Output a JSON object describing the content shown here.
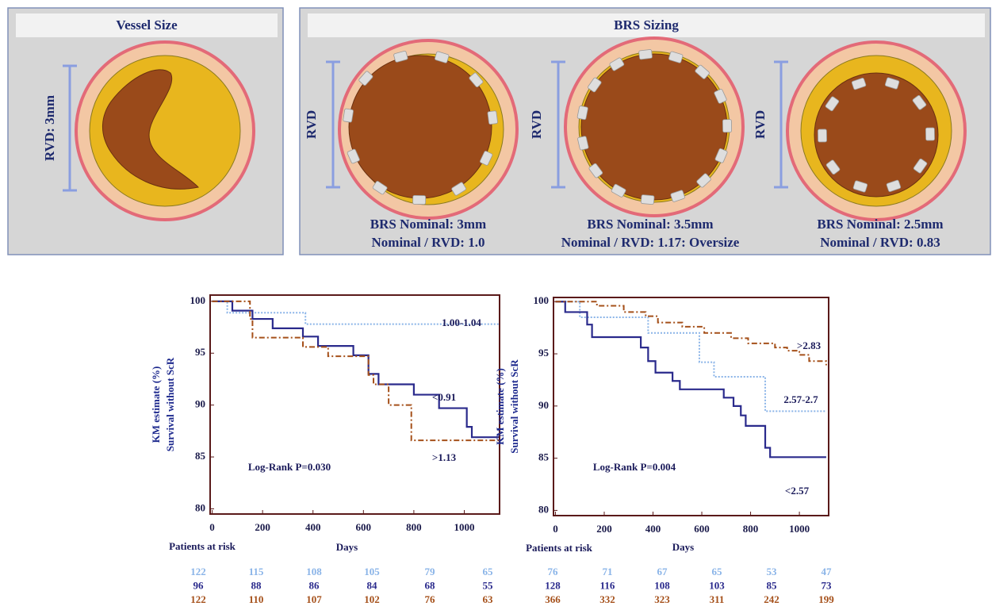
{
  "diagram": {
    "vessel_panel": {
      "title": "Vessel Size",
      "rvd_label": "RVD: 3mm"
    },
    "brs_panel": {
      "title": "BRS Sizing",
      "cases": [
        {
          "rvd_label": "RVD",
          "nominal": "BRS Nominal: 3mm",
          "ratio": "Nominal / RVD: 1.0"
        },
        {
          "rvd_label": "RVD",
          "nominal": "BRS Nominal: 3.5mm",
          "ratio": "Nominal / RVD: 1.17: Oversize"
        },
        {
          "rvd_label": "RVD",
          "nominal": "BRS Nominal: 2.5mm",
          "ratio": "Nominal / RVD: 0.83"
        }
      ]
    }
  },
  "chart_data": [
    {
      "type": "line",
      "ylabel": [
        "KM estimate (%)",
        "Survival without ScR"
      ],
      "xlabel": "Days",
      "annotation": "Log-Rank P=0.030",
      "risk_label": "Patients at risk",
      "xlim": [
        -8,
        1140
      ],
      "ylim": [
        79.5,
        100.6
      ],
      "xticks": [
        0,
        200,
        400,
        600,
        800,
        1000
      ],
      "yticks": [
        80,
        85,
        90,
        95,
        100
      ],
      "series": [
        {
          "name": "1.00-1.04",
          "color": "#8ab4e8",
          "line_style": "dotted",
          "x": [
            0,
            60,
            370,
            1140
          ],
          "values": [
            100,
            98.9,
            97.8,
            97.8
          ],
          "at_risk": [
            122,
            115,
            108,
            105,
            79,
            65
          ]
        },
        {
          "name": "<0.91",
          "color": "#2a2a8c",
          "line_style": "solid",
          "x": [
            0,
            80,
            160,
            240,
            360,
            420,
            560,
            620,
            660,
            800,
            900,
            1010,
            1030,
            1140
          ],
          "values": [
            100,
            99.1,
            98.3,
            97.4,
            96.6,
            95.7,
            94.8,
            93.0,
            92.0,
            91.0,
            89.7,
            87.9,
            86.9,
            86.9
          ],
          "at_risk": [
            96,
            88,
            86,
            84,
            68,
            55
          ]
        },
        {
          "name": ">1.13",
          "color": "#a5501a",
          "line_style": "dashdot",
          "x": [
            0,
            150,
            160,
            360,
            460,
            620,
            640,
            700,
            790,
            1140
          ],
          "values": [
            100,
            98.3,
            96.5,
            95.6,
            94.7,
            92.9,
            92.0,
            90.0,
            86.6,
            86.6
          ],
          "at_risk": [
            122,
            110,
            107,
            102,
            76,
            63
          ]
        }
      ]
    },
    {
      "type": "line",
      "ylabel": [
        "KM estimate (%)",
        "Survival without ScR"
      ],
      "xlabel": "Days",
      "annotation": "Log-Rank P=0.004",
      "risk_label": "Patients at risk",
      "xlim": [
        -8,
        1120
      ],
      "ylim": [
        79.5,
        100.4
      ],
      "xticks": [
        0,
        200,
        400,
        600,
        800,
        1000
      ],
      "yticks": [
        80,
        85,
        90,
        95,
        100
      ],
      "series": [
        {
          "name": "2.57-2.7",
          "color": "#8ab4e8",
          "line_style": "dotted",
          "x": [
            0,
            100,
            380,
            590,
            650,
            860,
            1110
          ],
          "values": [
            100,
            98.5,
            97.0,
            94.2,
            92.8,
            89.5,
            89.5
          ],
          "at_risk": [
            76,
            71,
            67,
            65,
            53,
            47
          ]
        },
        {
          "name": "<2.57",
          "color": "#2a2a8c",
          "line_style": "solid",
          "x": [
            0,
            40,
            130,
            150,
            350,
            380,
            410,
            480,
            510,
            690,
            730,
            760,
            780,
            860,
            880,
            1110
          ],
          "values": [
            100,
            99.0,
            97.8,
            96.6,
            95.6,
            94.3,
            93.2,
            92.4,
            91.6,
            90.8,
            90.0,
            89.1,
            88.1,
            86.0,
            85.1,
            85.1
          ],
          "at_risk": [
            128,
            116,
            108,
            103,
            85,
            73
          ]
        },
        {
          "name": ">2.83",
          "color": "#a5501a",
          "line_style": "dashdot",
          "x": [
            0,
            170,
            280,
            370,
            420,
            520,
            610,
            720,
            790,
            900,
            950,
            1000,
            1040,
            1110
          ],
          "values": [
            100,
            99.6,
            99.0,
            98.6,
            98.0,
            97.6,
            97.0,
            96.5,
            96.0,
            95.6,
            95.3,
            94.9,
            94.3,
            93.9
          ],
          "at_risk": [
            366,
            332,
            323,
            311,
            242,
            199
          ]
        }
      ]
    }
  ]
}
